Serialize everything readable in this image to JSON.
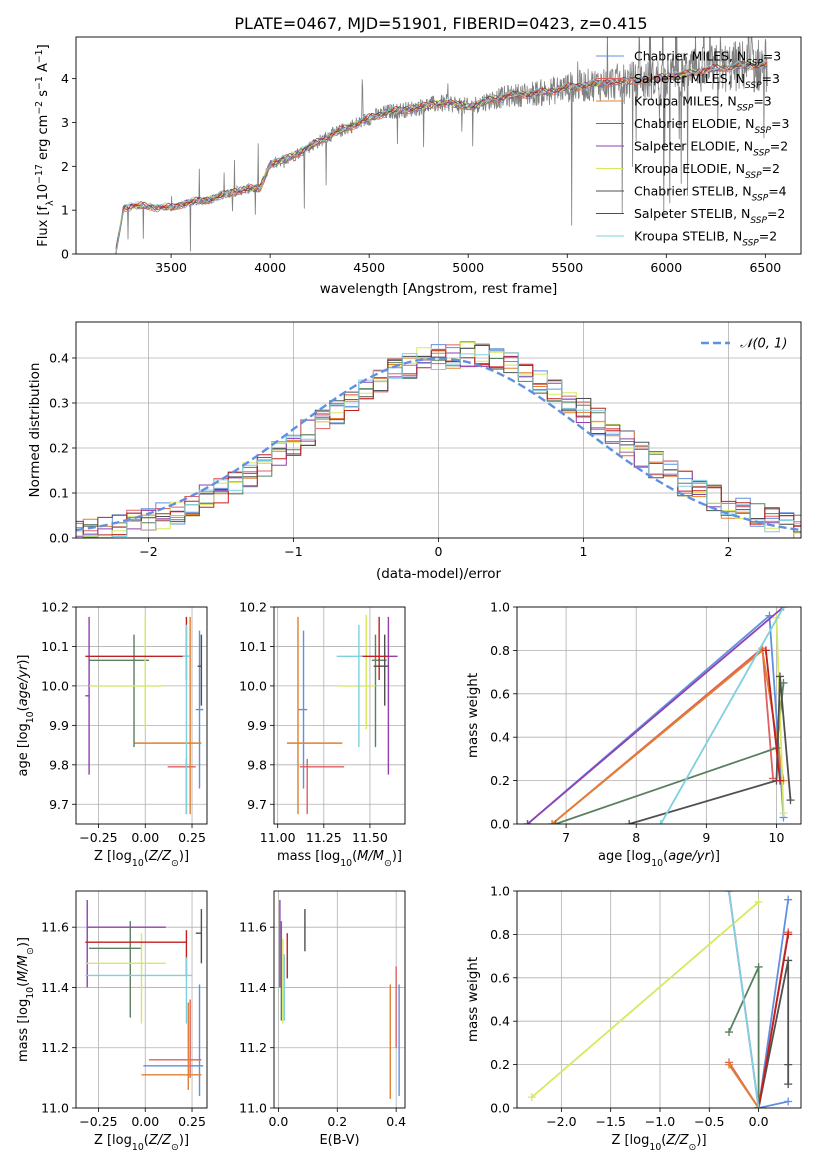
{
  "figure_title": "PLATE=0467, MJD=51901, FIBERID=0423, z=0.415",
  "model_colors": {
    "Chabrier MILES": "#6090e0",
    "Salpeter MILES": "#e06060",
    "Kroupa MILES": "#e08030",
    "Chabrier ELODIE": "#5a8060",
    "Salpeter ELODIE": "#9040b0",
    "Kroupa ELODIE": "#d8e860",
    "Chabrier STELIB": "#505050",
    "Salpeter STELIB": "#c02020",
    "Kroupa STELIB": "#80d0e0",
    "data": "#808080",
    "gaussian": "#6090e0"
  },
  "chart_data": [
    {
      "id": "spectrum",
      "type": "line",
      "title": "",
      "xlabel": "wavelength [Angstrom, rest frame]",
      "ylabel_parts": [
        "Flux [f",
        "λ",
        "10",
        "−17",
        " erg cm",
        "−2",
        " s",
        "−1",
        " A",
        "−1",
        "]"
      ],
      "xlim": [
        3020,
        6680
      ],
      "ylim": [
        0,
        4.95
      ],
      "xticks": [
        3500,
        4000,
        4500,
        5000,
        5500,
        6000,
        6500
      ],
      "yticks": [
        0,
        1,
        2,
        3,
        4
      ],
      "grid": false,
      "legend_position": "top-right",
      "legend": [
        {
          "name": "Chabrier MILES",
          "n": "3"
        },
        {
          "name": "Salpeter MILES",
          "n": "3"
        },
        {
          "name": "Kroupa MILES",
          "n": "3"
        },
        {
          "name": "Chabrier ELODIE",
          "n": "3"
        },
        {
          "name": "Salpeter ELODIE",
          "n": "2"
        },
        {
          "name": "Kroupa ELODIE",
          "n": "2"
        },
        {
          "name": "Chabrier STELIB",
          "n": "4"
        },
        {
          "name": "Salpeter STELIB",
          "n": "2"
        },
        {
          "name": "Kroupa STELIB",
          "n": "2"
        }
      ],
      "legend_sub": "SSP",
      "continuum": {
        "x": [
          3220,
          3260,
          3300,
          3400,
          3500,
          3560,
          3700,
          3800,
          3900,
          3950,
          4000,
          4100,
          4200,
          4300,
          4400,
          4500,
          4600,
          4700,
          4800,
          4900,
          5000,
          5100,
          5200,
          5300,
          5400,
          5500,
          5600,
          5700,
          5800,
          5900,
          6000,
          6100,
          6200,
          6300,
          6400,
          6500
        ],
        "y": [
          0.0,
          1.05,
          1.1,
          1.08,
          1.05,
          1.15,
          1.25,
          1.4,
          1.5,
          1.5,
          2.05,
          2.2,
          2.45,
          2.7,
          2.9,
          3.1,
          3.25,
          3.3,
          3.4,
          3.45,
          3.35,
          3.5,
          3.6,
          3.65,
          3.7,
          3.8,
          3.85,
          3.9,
          3.95,
          3.95,
          4.05,
          4.1,
          4.2,
          4.25,
          4.3,
          4.3
        ]
      }
    },
    {
      "id": "residuals",
      "type": "histogram",
      "title": "",
      "xlabel": "(data-model)/error",
      "ylabel": "Normed distribution",
      "xlim": [
        -2.5,
        2.5
      ],
      "ylim": [
        0,
        0.48
      ],
      "xticks": [
        -2,
        -1,
        0,
        1,
        2
      ],
      "yticks": [
        0.0,
        0.1,
        0.2,
        0.3,
        0.4
      ],
      "grid": true,
      "legend_position": "top-right",
      "legend": [
        {
          "name": "𝒩(0, 1)"
        }
      ],
      "bin_width": 0.1
    },
    {
      "id": "age_vs_Z",
      "type": "errorbar",
      "xlabel": "Z [log10(Z/Z⊙)]",
      "ylabel": "age  [log10(age/yr)]",
      "xlim": [
        -0.37,
        0.33
      ],
      "ylim": [
        9.65,
        10.2
      ],
      "xticks": [
        -0.25,
        0.0,
        0.25
      ],
      "yticks": [
        9.7,
        9.8,
        9.9,
        10.0,
        10.1,
        10.2
      ],
      "xtick_labels": [
        "−0.25",
        "0.00",
        "0.25"
      ],
      "grid": true,
      "points": [
        {
          "model": "Chabrier MILES",
          "x": 0.29,
          "xerr": [
            0.02,
            0.02
          ],
          "y": 9.94,
          "yerr": [
            0.2,
            0.2
          ]
        },
        {
          "model": "Salpeter MILES",
          "x": 0.22,
          "xerr": [
            0.1,
            0.05
          ],
          "y": 9.795,
          "yerr": [
            0.12,
            0.02
          ]
        },
        {
          "model": "Kroupa MILES",
          "x": 0.24,
          "xerr": [
            0.3,
            0.06
          ],
          "y": 9.855,
          "yerr": [
            0.18,
            0.32
          ]
        },
        {
          "model": "Chabrier ELODIE",
          "x": -0.06,
          "xerr": [
            0.24,
            0.08
          ],
          "y": 10.065,
          "yerr": [
            0.22,
            0.065
          ]
        },
        {
          "model": "Salpeter ELODIE",
          "x": -0.3,
          "xerr": [
            0.02,
            0.0
          ],
          "y": 9.975,
          "yerr": [
            0.2,
            0.2
          ]
        },
        {
          "model": "Kroupa ELODIE",
          "x": -0.0,
          "xerr": [
            0.3,
            0.1
          ],
          "y": 10.0,
          "yerr": [
            0.11,
            0.18
          ]
        },
        {
          "model": "Chabrier STELIB",
          "x": 0.3,
          "xerr": [
            0.02,
            0.0
          ],
          "y": 10.05,
          "yerr": [
            0.1,
            0.08
          ]
        },
        {
          "model": "Salpeter STELIB",
          "x": 0.22,
          "xerr": [
            0.54,
            0.02
          ],
          "y": 10.075,
          "yerr": [
            0.06,
            0.1
          ]
        },
        {
          "model": "Kroupa STELIB",
          "x": 0.22,
          "xerr": [
            0.02,
            0.02
          ],
          "y": 10.075,
          "yerr": [
            0.4,
            0.08
          ]
        }
      ]
    },
    {
      "id": "age_vs_mass",
      "type": "errorbar",
      "xlabel": "mass [log10(M/M⊙)]",
      "ylabel": "",
      "xlim": [
        10.98,
        11.69
      ],
      "ylim": [
        9.65,
        10.2
      ],
      "xticks": [
        11.0,
        11.25,
        11.5
      ],
      "yticks": [
        9.7,
        9.8,
        9.9,
        10.0,
        10.1,
        10.2
      ],
      "xtick_labels": [
        "11.00",
        "11.25",
        "11.50"
      ],
      "grid": true,
      "points": [
        {
          "model": "Chabrier MILES",
          "x": 11.14,
          "xerr": [
            0.03,
            0.02
          ],
          "y": 9.94,
          "yerr": [
            0.2,
            0.2
          ]
        },
        {
          "model": "Salpeter MILES",
          "x": 11.16,
          "xerr": [
            0.04,
            0.2
          ],
          "y": 9.795,
          "yerr": [
            0.12,
            0.02
          ]
        },
        {
          "model": "Kroupa MILES",
          "x": 11.11,
          "xerr": [
            0.06,
            0.24
          ],
          "y": 9.855,
          "yerr": [
            0.18,
            0.32
          ]
        },
        {
          "model": "Chabrier ELODIE",
          "x": 11.53,
          "xerr": [
            0.02,
            0.06
          ],
          "y": 10.065,
          "yerr": [
            0.22,
            0.065
          ]
        },
        {
          "model": "Salpeter ELODIE",
          "x": 11.6,
          "xerr": [
            0.0,
            0.05
          ],
          "y": 10.075,
          "yerr": [
            0.3,
            0.1
          ]
        },
        {
          "model": "Kroupa ELODIE",
          "x": 11.48,
          "xerr": [
            0.15,
            0.05
          ],
          "y": 10.0,
          "yerr": [
            0.11,
            0.18
          ]
        },
        {
          "model": "Chabrier STELIB",
          "x": 11.58,
          "xerr": [
            0.06,
            0.02
          ],
          "y": 10.05,
          "yerr": [
            0.1,
            0.08
          ]
        },
        {
          "model": "Salpeter STELIB",
          "x": 11.55,
          "xerr": [
            0.1,
            0.05
          ],
          "y": 10.075,
          "yerr": [
            0.06,
            0.1
          ]
        },
        {
          "model": "Kroupa STELIB",
          "x": 11.44,
          "xerr": [
            0.12,
            0.02
          ],
          "y": 10.075,
          "yerr": [
            0.23,
            0.08
          ]
        }
      ]
    },
    {
      "id": "weight_vs_age",
      "type": "line",
      "xlabel": "age  [log10(age/yr)]",
      "ylabel": "mass weight",
      "xlim": [
        6.3,
        10.35
      ],
      "ylim": [
        0.0,
        1.0
      ],
      "xticks": [
        7,
        8,
        9,
        10
      ],
      "yticks": [
        0.0,
        0.2,
        0.4,
        0.6,
        0.8,
        1.0
      ],
      "xtick_labels": [
        "7",
        "8",
        "9",
        "10"
      ],
      "ytick_labels": [
        "0.0",
        "0.2",
        "0.4",
        "0.6",
        "0.8",
        "1.0"
      ],
      "grid": true,
      "series": [
        {
          "model": "Chabrier MILES",
          "x": [
            6.45,
            9.9,
            10.1
          ],
          "y": [
            0.0,
            0.96,
            0.03
          ]
        },
        {
          "model": "Salpeter MILES",
          "x": [
            6.8,
            9.8,
            9.95
          ],
          "y": [
            0.0,
            0.81,
            0.21
          ]
        },
        {
          "model": "Kroupa MILES",
          "x": [
            6.8,
            9.8,
            10.1
          ],
          "y": [
            0.0,
            0.8,
            0.2
          ]
        },
        {
          "model": "Chabrier ELODIE",
          "x": [
            6.85,
            10.0,
            10.1
          ],
          "y": [
            0.0,
            0.35,
            0.65
          ]
        },
        {
          "model": "Salpeter ELODIE",
          "x": [
            6.45,
            10.1
          ],
          "y": [
            0.0,
            1.0
          ]
        },
        {
          "model": "Kroupa ELODIE",
          "x": [
            10.0,
            10.1
          ],
          "y": [
            0.95,
            0.05
          ]
        },
        {
          "model": "Chabrier STELIB",
          "x": [
            7.9,
            10.0,
            10.05,
            10.2
          ],
          "y": [
            0.0,
            0.2,
            0.68,
            0.11
          ]
        },
        {
          "model": "Salpeter STELIB",
          "x": [
            9.85,
            10.05
          ],
          "y": [
            0.8,
            0.2
          ]
        },
        {
          "model": "Kroupa STELIB",
          "x": [
            8.35,
            10.1
          ],
          "y": [
            0.0,
            1.0
          ]
        }
      ]
    },
    {
      "id": "mass_vs_Z",
      "type": "errorbar",
      "xlabel": "Z [log10(Z/Z⊙)]",
      "ylabel": "mass [log10(M/M⊙)]",
      "xlim": [
        -0.37,
        0.33
      ],
      "ylim": [
        11.0,
        11.72
      ],
      "xticks": [
        -0.25,
        0.0,
        0.25
      ],
      "yticks": [
        11.0,
        11.2,
        11.4,
        11.6
      ],
      "xtick_labels": [
        "−0.25",
        "0.00",
        "0.25"
      ],
      "grid": true,
      "points": [
        {
          "model": "Chabrier MILES",
          "x": 0.29,
          "xerr": [
            0.3,
            0.02
          ],
          "y": 11.14,
          "yerr": [
            0.1,
            0.27
          ]
        },
        {
          "model": "Salpeter MILES",
          "x": 0.24,
          "xerr": [
            0.22,
            0.06
          ],
          "y": 11.16,
          "yerr": [
            0.06,
            0.2
          ]
        },
        {
          "model": "Kroupa MILES",
          "x": 0.23,
          "xerr": [
            0.25,
            0.07
          ],
          "y": 11.11,
          "yerr": [
            0.05,
            0.24
          ]
        },
        {
          "model": "Chabrier ELODIE",
          "x": -0.08,
          "xerr": [
            0.22,
            0.06
          ],
          "y": 11.53,
          "yerr": [
            0.23,
            0.09
          ]
        },
        {
          "model": "Salpeter ELODIE",
          "x": -0.31,
          "xerr": [
            0.0,
            0.42
          ],
          "y": 11.6,
          "yerr": [
            0.2,
            0.09
          ]
        },
        {
          "model": "Kroupa ELODIE",
          "x": -0.02,
          "xerr": [
            0.3,
            0.13
          ],
          "y": 11.48,
          "yerr": [
            0.2,
            0.1
          ]
        },
        {
          "model": "Chabrier STELIB",
          "x": 0.3,
          "xerr": [
            0.03,
            0.0
          ],
          "y": 11.58,
          "yerr": [
            0.1,
            0.08
          ]
        },
        {
          "model": "Salpeter STELIB",
          "x": 0.22,
          "xerr": [
            0.54,
            0.0
          ],
          "y": 11.55,
          "yerr": [
            0.11,
            0.04
          ]
        },
        {
          "model": "Kroupa STELIB",
          "x": 0.22,
          "xerr": [
            0.54,
            0.03
          ],
          "y": 11.44,
          "yerr": [
            0.16,
            0.06
          ]
        }
      ]
    },
    {
      "id": "mass_vs_ebv",
      "type": "errorbar",
      "xlabel": "E(B-V)",
      "ylabel": "",
      "xlim": [
        -0.015,
        0.43
      ],
      "ylim": [
        11.0,
        11.72
      ],
      "xticks": [
        0.0,
        0.2,
        0.4
      ],
      "yticks": [
        11.0,
        11.2,
        11.4,
        11.6
      ],
      "xtick_labels": [
        "0.0",
        "0.2",
        "0.4"
      ],
      "grid": true,
      "points": [
        {
          "model": "Chabrier MILES",
          "x": 0.41,
          "xerr": [
            0,
            0
          ],
          "y": 11.14,
          "yerr": [
            0.1,
            0.27
          ]
        },
        {
          "model": "Salpeter MILES",
          "x": 0.4,
          "xerr": [
            0,
            0
          ],
          "y": 11.26,
          "yerr": [
            0.06,
            0.21
          ]
        },
        {
          "model": "Kroupa MILES",
          "x": 0.38,
          "xerr": [
            0,
            0
          ],
          "y": 11.21,
          "yerr": [
            0.18,
            0.2
          ]
        },
        {
          "model": "Chabrier ELODIE",
          "x": 0.01,
          "xerr": [
            0,
            0
          ],
          "y": 11.49,
          "yerr": [
            0.2,
            0.13
          ]
        },
        {
          "model": "Salpeter ELODIE",
          "x": 0.005,
          "xerr": [
            0,
            0
          ],
          "y": 11.6,
          "yerr": [
            0.2,
            0.09
          ]
        },
        {
          "model": "Kroupa ELODIE",
          "x": 0.015,
          "xerr": [
            0,
            0
          ],
          "y": 11.45,
          "yerr": [
            0.17,
            0.11
          ]
        },
        {
          "model": "Chabrier STELIB",
          "x": 0.09,
          "xerr": [
            0,
            0
          ],
          "y": 11.59,
          "yerr": [
            0.07,
            0.07
          ]
        },
        {
          "model": "Salpeter STELIB",
          "x": 0.03,
          "xerr": [
            0,
            0
          ],
          "y": 11.51,
          "yerr": [
            0.08,
            0.07
          ]
        },
        {
          "model": "Kroupa STELIB",
          "x": 0.02,
          "xerr": [
            0,
            0
          ],
          "y": 11.43,
          "yerr": [
            0.14,
            0.08
          ]
        }
      ]
    },
    {
      "id": "weight_vs_Z",
      "type": "line",
      "xlabel": "Z [log10(Z/Z⊙)]",
      "ylabel": "mass weight",
      "xlim": [
        -2.45,
        0.43
      ],
      "ylim": [
        0.0,
        1.0
      ],
      "xticks": [
        -2.0,
        -1.5,
        -1.0,
        -0.5,
        0.0
      ],
      "yticks": [
        0.0,
        0.2,
        0.4,
        0.6,
        0.8,
        1.0
      ],
      "xtick_labels": [
        "−2.0",
        "−1.5",
        "−1.0",
        "−0.5",
        "0.0"
      ],
      "ytick_labels": [
        "0.0",
        "0.2",
        "0.4",
        "0.6",
        "0.8",
        "1.0"
      ],
      "grid": true,
      "series": [
        {
          "model": "Chabrier MILES",
          "x": [
            0.3,
            0.0,
            0.3
          ],
          "y": [
            0.96,
            0.0,
            0.03
          ]
        },
        {
          "model": "Salpeter MILES",
          "x": [
            -0.3,
            0.0,
            0.3
          ],
          "y": [
            0.21,
            0.0,
            0.81
          ]
        },
        {
          "model": "Kroupa MILES",
          "x": [
            -0.3,
            0.0,
            0.3
          ],
          "y": [
            0.2,
            0.0,
            0.8
          ]
        },
        {
          "model": "Chabrier ELODIE",
          "x": [
            -0.3,
            0.0,
            0.0
          ],
          "y": [
            0.35,
            0.65,
            0.0
          ]
        },
        {
          "model": "Salpeter ELODIE",
          "x": [
            -0.3,
            0.0
          ],
          "y": [
            1.0,
            0.0
          ]
        },
        {
          "model": "Kroupa ELODIE",
          "x": [
            -2.3,
            0.0
          ],
          "y": [
            0.05,
            0.95
          ]
        },
        {
          "model": "Chabrier STELIB",
          "x": [
            0.0,
            0.3,
            0.3,
            0.3
          ],
          "y": [
            0.0,
            0.68,
            0.2,
            0.11
          ]
        },
        {
          "model": "Salpeter STELIB",
          "x": [
            0.3,
            0.0
          ],
          "y": [
            0.8,
            0.0
          ]
        },
        {
          "model": "Kroupa STELIB",
          "x": [
            -0.3,
            0.0
          ],
          "y": [
            1.0,
            0.0
          ]
        }
      ]
    }
  ]
}
